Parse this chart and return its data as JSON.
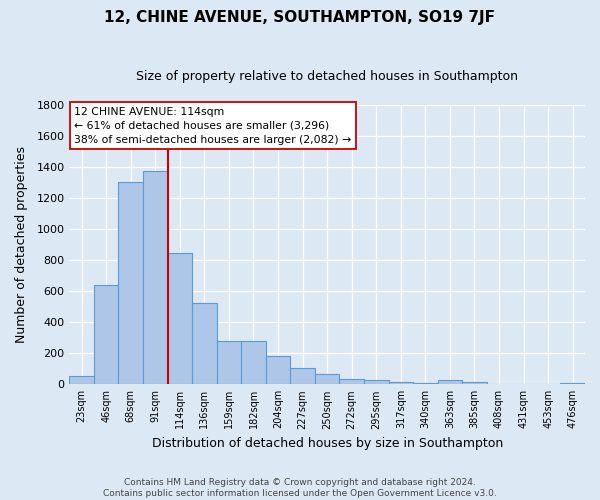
{
  "title": "12, CHINE AVENUE, SOUTHAMPTON, SO19 7JF",
  "subtitle": "Size of property relative to detached houses in Southampton",
  "xlabel": "Distribution of detached houses by size in Southampton",
  "ylabel": "Number of detached properties",
  "footer_line1": "Contains HM Land Registry data © Crown copyright and database right 2024.",
  "footer_line2": "Contains public sector information licensed under the Open Government Licence v3.0.",
  "annotation_line1": "12 CHINE AVENUE: 114sqm",
  "annotation_line2": "← 61% of detached houses are smaller (3,296)",
  "annotation_line3": "38% of semi-detached houses are larger (2,082) →",
  "bin_labels": [
    "23sqm",
    "46sqm",
    "68sqm",
    "91sqm",
    "114sqm",
    "136sqm",
    "159sqm",
    "182sqm",
    "204sqm",
    "227sqm",
    "250sqm",
    "272sqm",
    "295sqm",
    "317sqm",
    "340sqm",
    "363sqm",
    "385sqm",
    "408sqm",
    "431sqm",
    "453sqm",
    "476sqm"
  ],
  "bar_values": [
    55,
    640,
    1305,
    1375,
    845,
    525,
    278,
    278,
    185,
    105,
    65,
    35,
    25,
    13,
    8,
    25,
    13,
    0,
    0,
    0,
    10
  ],
  "bar_color": "#aec6e8",
  "bar_edge_color": "#5b9bd5",
  "marker_color": "#cc0000",
  "background_color": "#dde8f5",
  "plot_bg_color": "#dde8f5",
  "ylim": [
    0,
    1800
  ],
  "yticks": [
    0,
    200,
    400,
    600,
    800,
    1000,
    1200,
    1400,
    1600,
    1800
  ],
  "title_fontsize": 11,
  "subtitle_fontsize": 9
}
